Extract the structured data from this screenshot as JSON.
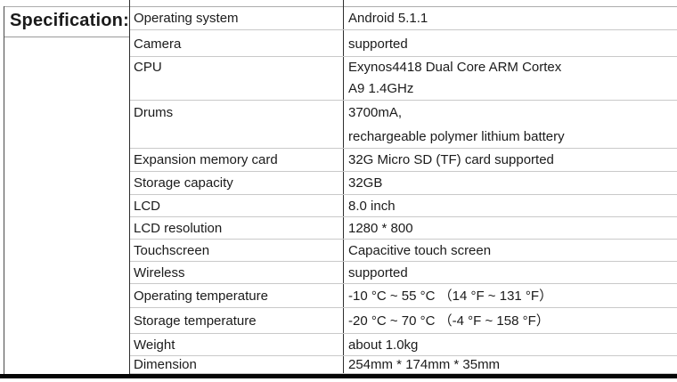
{
  "table": {
    "header": "Specification:",
    "rows": [
      {
        "name": "Operating system",
        "value": "Android 5.1.1"
      },
      {
        "name": "Camera",
        "value": "supported"
      },
      {
        "name": "CPU",
        "value": "Exynos4418 Dual Core ARM Cortex\nA9 1.4GHz"
      },
      {
        "name": "Drums",
        "value": "3700mA,\nrechargeable polymer lithium battery"
      },
      {
        "name": "Expansion memory card",
        "value": "32G Micro SD (TF) card supported"
      },
      {
        "name": "Storage capacity",
        "value": "32GB"
      },
      {
        "name": "LCD",
        "value": "8.0 inch"
      },
      {
        "name": "LCD resolution",
        "value": "1280 * 800"
      },
      {
        "name": "Touchscreen",
        "value": "Capacitive touch screen"
      },
      {
        "name": "Wireless",
        "value": "supported"
      },
      {
        "name": "Operating temperature",
        "value": "-10 °C ~ 55 °C （14 °F ~ 131 °F）"
      },
      {
        "name": "Storage temperature",
        "value": "-20 °C ~ 70 °C （-4 °F ~ 158 °F）"
      },
      {
        "name": "Weight",
        "value": "about 1.0kg"
      },
      {
        "name": "Dimension",
        "value": "254mm * 174mm * 35mm"
      }
    ]
  },
  "colors": {
    "background": "#ffffff",
    "text": "#1b1b1b",
    "gridline": "#c9c9c9",
    "column_divider": "#2e2e2e",
    "outer_bottom_border": "#050505"
  }
}
